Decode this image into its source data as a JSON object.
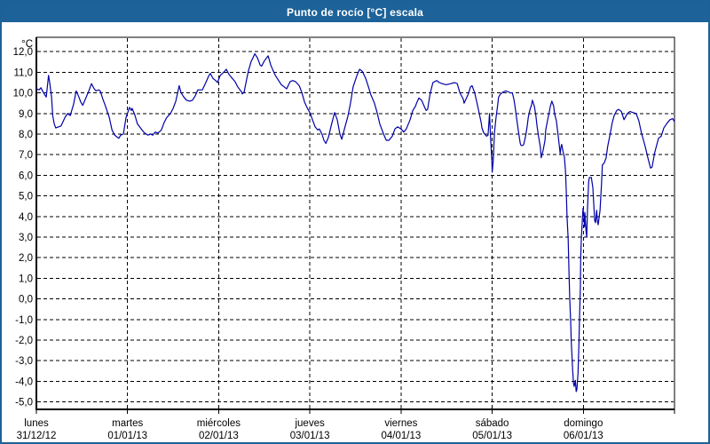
{
  "window": {
    "title": "Punto de rocío [°C] escala"
  },
  "colors": {
    "titlebar_bg": "#1d6399",
    "titlebar_text": "#ffffff",
    "frame_border": "#1c6296",
    "plot_bg": "#ffffff",
    "grid": "#000000",
    "axis": "#000000",
    "line": "#0000a8"
  },
  "chart_data": {
    "type": "line",
    "title": "Punto de rocío [°C] escala",
    "ylabel": "°C",
    "xlabel": "",
    "grid": "dashed",
    "legend": "none",
    "ylim": [
      -5.36,
      12.7
    ],
    "xlim_hours": [
      0,
      168
    ],
    "yticks": [
      12,
      11,
      10,
      9,
      8,
      7,
      6,
      5,
      4,
      3,
      2,
      1,
      0,
      -1,
      -2,
      -3,
      -4,
      -5
    ],
    "ytick_labels": [
      "12,0",
      "11,0",
      "10,0",
      "9,0",
      "8,0",
      "7,0",
      "6,0",
      "5,0",
      "4,0",
      "3,0",
      "2,0",
      "1,0",
      "0,0",
      "-1,0",
      "-2,0",
      "-3,0",
      "-4,0",
      "-5,0"
    ],
    "x_days": [
      {
        "t": 0,
        "name": "lunes",
        "date": "31/12/12"
      },
      {
        "t": 24,
        "name": "martes",
        "date": "01/01/13"
      },
      {
        "t": 48,
        "name": "miércoles",
        "date": "02/01/13"
      },
      {
        "t": 72,
        "name": "jueves",
        "date": "03/01/13"
      },
      {
        "t": 96,
        "name": "viernes",
        "date": "04/01/13"
      },
      {
        "t": 120,
        "name": "sábado",
        "date": "05/01/13"
      },
      {
        "t": 144,
        "name": "domingo",
        "date": "06/01/13"
      }
    ],
    "series": [
      {
        "name": "Punto de rocío [°C]",
        "points": [
          [
            0,
            10.2
          ],
          [
            0.7,
            10.15
          ],
          [
            1.2,
            10.25
          ],
          [
            1.9,
            10.0
          ],
          [
            2.6,
            9.8
          ],
          [
            3.2,
            10.85
          ],
          [
            3.5,
            10.5
          ],
          [
            4.0,
            9.8
          ],
          [
            4.3,
            8.9
          ],
          [
            4.7,
            8.5
          ],
          [
            5.1,
            8.3
          ],
          [
            5.8,
            8.35
          ],
          [
            6.5,
            8.4
          ],
          [
            7.5,
            8.8
          ],
          [
            8.2,
            9.0
          ],
          [
            8.9,
            8.9
          ],
          [
            9.8,
            9.45
          ],
          [
            10.5,
            10.1
          ],
          [
            11.2,
            9.8
          ],
          [
            11.7,
            9.55
          ],
          [
            12.2,
            9.4
          ],
          [
            12.9,
            9.7
          ],
          [
            13.8,
            10.1
          ],
          [
            14.5,
            10.45
          ],
          [
            15.2,
            10.2
          ],
          [
            15.7,
            10.1
          ],
          [
            16.4,
            10.15
          ],
          [
            16.8,
            10.1
          ],
          [
            17.5,
            9.7
          ],
          [
            18.2,
            9.35
          ],
          [
            19.2,
            8.8
          ],
          [
            19.9,
            8.2
          ],
          [
            20.6,
            7.95
          ],
          [
            21.3,
            7.85
          ],
          [
            21.7,
            7.8
          ],
          [
            22.2,
            7.95
          ],
          [
            22.9,
            8.0
          ],
          [
            23.6,
            8.8
          ],
          [
            24.5,
            9.3
          ],
          [
            25.0,
            9.15
          ],
          [
            25.2,
            9.25
          ],
          [
            25.9,
            8.95
          ],
          [
            26.6,
            8.5
          ],
          [
            27.8,
            8.2
          ],
          [
            28.5,
            8.05
          ],
          [
            29.4,
            7.95
          ],
          [
            30.1,
            8.0
          ],
          [
            30.6,
            7.95
          ],
          [
            31.3,
            8.1
          ],
          [
            32.0,
            8.05
          ],
          [
            32.9,
            8.2
          ],
          [
            33.6,
            8.55
          ],
          [
            34.3,
            8.8
          ],
          [
            35.3,
            9.0
          ],
          [
            36.0,
            9.25
          ],
          [
            36.7,
            9.6
          ],
          [
            37.6,
            10.35
          ],
          [
            38.1,
            10.0
          ],
          [
            38.8,
            9.8
          ],
          [
            39.5,
            9.65
          ],
          [
            40.4,
            9.6
          ],
          [
            41.1,
            9.65
          ],
          [
            41.8,
            9.85
          ],
          [
            42.5,
            10.15
          ],
          [
            43.7,
            10.15
          ],
          [
            44.6,
            10.5
          ],
          [
            45.3,
            10.8
          ],
          [
            45.8,
            10.95
          ],
          [
            46.5,
            10.7
          ],
          [
            47.2,
            10.6
          ],
          [
            47.7,
            10.5
          ],
          [
            48.4,
            10.85
          ],
          [
            49.3,
            11.0
          ],
          [
            50.0,
            11.15
          ],
          [
            50.7,
            10.9
          ],
          [
            51.6,
            10.7
          ],
          [
            52.3,
            10.55
          ],
          [
            53.0,
            10.3
          ],
          [
            54.0,
            10.05
          ],
          [
            54.2,
            9.95
          ],
          [
            54.7,
            10.05
          ],
          [
            55.4,
            10.7
          ],
          [
            55.8,
            11.05
          ],
          [
            56.5,
            11.5
          ],
          [
            57.5,
            11.9
          ],
          [
            58.2,
            11.7
          ],
          [
            58.9,
            11.35
          ],
          [
            59.3,
            11.3
          ],
          [
            60.0,
            11.55
          ],
          [
            61.0,
            11.8
          ],
          [
            61.7,
            11.35
          ],
          [
            62.4,
            11.05
          ],
          [
            62.9,
            10.85
          ],
          [
            63.6,
            10.65
          ],
          [
            64.5,
            10.4
          ],
          [
            65.2,
            10.3
          ],
          [
            65.9,
            10.2
          ],
          [
            66.8,
            10.55
          ],
          [
            67.5,
            10.6
          ],
          [
            68.2,
            10.55
          ],
          [
            69.2,
            10.35
          ],
          [
            69.9,
            10.0
          ],
          [
            70.6,
            9.55
          ],
          [
            71.5,
            9.2
          ],
          [
            72.0,
            9.05
          ],
          [
            72.7,
            8.7
          ],
          [
            73.4,
            8.35
          ],
          [
            74.1,
            8.2
          ],
          [
            74.5,
            8.25
          ],
          [
            75.2,
            8.0
          ],
          [
            75.7,
            7.7
          ],
          [
            76.2,
            7.55
          ],
          [
            76.9,
            7.85
          ],
          [
            77.6,
            8.4
          ],
          [
            78.5,
            9.05
          ],
          [
            79.2,
            8.7
          ],
          [
            79.9,
            8.0
          ],
          [
            80.4,
            7.75
          ],
          [
            81.1,
            8.25
          ],
          [
            82.0,
            8.85
          ],
          [
            82.7,
            9.5
          ],
          [
            83.4,
            10.3
          ],
          [
            84.4,
            10.85
          ],
          [
            85.1,
            11.15
          ],
          [
            85.8,
            11.05
          ],
          [
            86.7,
            10.7
          ],
          [
            87.4,
            10.3
          ],
          [
            88.1,
            9.9
          ],
          [
            89.0,
            9.5
          ],
          [
            89.7,
            9.05
          ],
          [
            90.4,
            8.5
          ],
          [
            91.4,
            8.0
          ],
          [
            92.1,
            7.7
          ],
          [
            92.8,
            7.7
          ],
          [
            93.7,
            7.9
          ],
          [
            94.4,
            8.25
          ],
          [
            95.1,
            8.35
          ],
          [
            96.0,
            8.25
          ],
          [
            96.7,
            8.1
          ],
          [
            97.4,
            8.25
          ],
          [
            98.4,
            8.7
          ],
          [
            99.1,
            9.15
          ],
          [
            99.8,
            9.35
          ],
          [
            100.2,
            9.55
          ],
          [
            100.7,
            9.75
          ],
          [
            101.4,
            9.65
          ],
          [
            102.1,
            9.35
          ],
          [
            102.6,
            9.15
          ],
          [
            103.0,
            9.2
          ],
          [
            103.7,
            10.0
          ],
          [
            104.4,
            10.5
          ],
          [
            105.4,
            10.6
          ],
          [
            106.1,
            10.5
          ],
          [
            106.8,
            10.45
          ],
          [
            107.9,
            10.4
          ],
          [
            109.1,
            10.45
          ],
          [
            110.1,
            10.5
          ],
          [
            110.8,
            10.45
          ],
          [
            111.5,
            10.0
          ],
          [
            112.4,
            9.7
          ],
          [
            112.6,
            9.5
          ],
          [
            113.6,
            9.9
          ],
          [
            114.3,
            10.3
          ],
          [
            114.7,
            10.35
          ],
          [
            115.4,
            10.0
          ],
          [
            115.9,
            9.6
          ],
          [
            116.6,
            9.0
          ],
          [
            117.1,
            8.55
          ],
          [
            117.3,
            8.3
          ],
          [
            117.8,
            8.05
          ],
          [
            118.5,
            7.9
          ],
          [
            118.9,
            7.95
          ],
          [
            119.3,
            9.0
          ],
          [
            119.6,
            7.7
          ],
          [
            119.9,
            6.8
          ],
          [
            120.0,
            6.15
          ],
          [
            120.3,
            6.8
          ],
          [
            120.6,
            8.05
          ],
          [
            121.0,
            8.8
          ],
          [
            121.4,
            9.35
          ],
          [
            121.7,
            9.8
          ],
          [
            122.2,
            9.95
          ],
          [
            122.9,
            10.05
          ],
          [
            123.6,
            10.1
          ],
          [
            124.3,
            10.05
          ],
          [
            124.8,
            10.0
          ],
          [
            125.3,
            10.0
          ],
          [
            125.7,
            9.7
          ],
          [
            126.0,
            9.35
          ],
          [
            126.4,
            8.8
          ],
          [
            126.9,
            8.15
          ],
          [
            127.4,
            7.55
          ],
          [
            127.6,
            7.45
          ],
          [
            128.1,
            7.45
          ],
          [
            128.3,
            7.5
          ],
          [
            128.8,
            7.9
          ],
          [
            129.2,
            8.35
          ],
          [
            129.5,
            8.8
          ],
          [
            129.9,
            9.15
          ],
          [
            130.4,
            9.45
          ],
          [
            130.6,
            9.65
          ],
          [
            131.1,
            9.35
          ],
          [
            131.5,
            8.9
          ],
          [
            131.8,
            8.4
          ],
          [
            132.2,
            7.9
          ],
          [
            132.7,
            7.35
          ],
          [
            132.9,
            6.85
          ],
          [
            133.4,
            7.2
          ],
          [
            133.9,
            7.7
          ],
          [
            134.1,
            8.2
          ],
          [
            134.6,
            8.7
          ],
          [
            135.0,
            9.05
          ],
          [
            135.3,
            9.35
          ],
          [
            135.7,
            9.6
          ],
          [
            136.2,
            9.35
          ],
          [
            136.4,
            9.0
          ],
          [
            136.9,
            8.65
          ],
          [
            137.4,
            7.9
          ],
          [
            137.9,
            7.05
          ],
          [
            138.1,
            7.35
          ],
          [
            138.3,
            7.5
          ],
          [
            138.6,
            7.2
          ],
          [
            138.8,
            7.05
          ],
          [
            139.0,
            6.9
          ],
          [
            139.3,
            6.2
          ],
          [
            139.5,
            5.3
          ],
          [
            139.7,
            4.0
          ],
          [
            140.0,
            2.9
          ],
          [
            140.2,
            1.5
          ],
          [
            140.4,
            0.1
          ],
          [
            140.7,
            -1.35
          ],
          [
            140.8,
            -2.0
          ],
          [
            140.9,
            -2.35
          ],
          [
            141.2,
            -3.5
          ],
          [
            141.4,
            -4.1
          ],
          [
            141.6,
            -4.25
          ],
          [
            141.9,
            -3.95
          ],
          [
            142.1,
            -4.5
          ],
          [
            142.3,
            -4.4
          ],
          [
            142.6,
            -3.6
          ],
          [
            142.8,
            -2.35
          ],
          [
            143.0,
            -0.9
          ],
          [
            143.2,
            0.5
          ],
          [
            143.3,
            2.0
          ],
          [
            143.5,
            3.0
          ],
          [
            143.7,
            3.7
          ],
          [
            143.9,
            4.4
          ],
          [
            144.2,
            3.9
          ],
          [
            144.3,
            3.5
          ],
          [
            144.4,
            4.2
          ],
          [
            144.7,
            3.3
          ],
          [
            144.9,
            3.0
          ],
          [
            145.1,
            4.4
          ],
          [
            145.4,
            5.7
          ],
          [
            145.6,
            5.9
          ],
          [
            146.1,
            5.9
          ],
          [
            146.5,
            5.4
          ],
          [
            146.8,
            4.4
          ],
          [
            147.0,
            3.8
          ],
          [
            147.2,
            3.7
          ],
          [
            147.5,
            4.3
          ],
          [
            147.7,
            3.8
          ],
          [
            147.9,
            3.6
          ],
          [
            148.4,
            4.3
          ],
          [
            148.8,
            5.6
          ],
          [
            149.0,
            6.5
          ],
          [
            149.5,
            6.6
          ],
          [
            150.0,
            6.85
          ],
          [
            150.4,
            7.4
          ],
          [
            151.1,
            8.05
          ],
          [
            151.6,
            8.55
          ],
          [
            152.1,
            8.9
          ],
          [
            152.8,
            9.15
          ],
          [
            153.3,
            9.2
          ],
          [
            154.0,
            9.1
          ],
          [
            154.7,
            8.7
          ],
          [
            155.6,
            9.0
          ],
          [
            156.3,
            9.1
          ],
          [
            157.0,
            9.05
          ],
          [
            157.9,
            9.0
          ],
          [
            158.6,
            8.65
          ],
          [
            159.3,
            8.05
          ],
          [
            160.3,
            7.4
          ],
          [
            161.0,
            6.85
          ],
          [
            161.7,
            6.35
          ],
          [
            162.1,
            6.4
          ],
          [
            162.8,
            7.1
          ],
          [
            163.8,
            7.8
          ],
          [
            164.5,
            7.9
          ],
          [
            165.2,
            8.3
          ],
          [
            166.1,
            8.55
          ],
          [
            166.8,
            8.7
          ],
          [
            167.5,
            8.75
          ],
          [
            168.0,
            8.6
          ]
        ]
      }
    ]
  }
}
